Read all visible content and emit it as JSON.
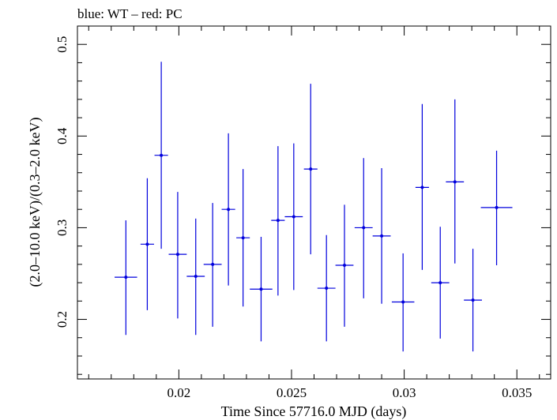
{
  "chart_data": {
    "type": "scatter",
    "title": "blue: WT – red: PC",
    "xlabel": "Time Since 57716.0 MJD (days)",
    "ylabel": "(2.0–10.0 keV)/(0.3–2.0 keV)",
    "xlim": [
      0.0155,
      0.0365
    ],
    "ylim": [
      0.135,
      0.52
    ],
    "x_ticks": [
      0.02,
      0.025,
      0.03,
      0.035
    ],
    "x_tick_labels": [
      "0.02",
      "0.025",
      "0.03",
      "0.035"
    ],
    "y_ticks": [
      0.2,
      0.3,
      0.4,
      0.5
    ],
    "y_tick_labels": [
      "0.2",
      "0.3",
      "0.4",
      "0.5"
    ],
    "grid": false,
    "series": [
      {
        "color": "#0000dd",
        "points": [
          {
            "x": 0.01765,
            "xerr": 0.0005,
            "y": 0.246,
            "ylo": 0.183,
            "yhi": 0.308
          },
          {
            "x": 0.0186,
            "xerr": 0.0003,
            "y": 0.282,
            "ylo": 0.21,
            "yhi": 0.354
          },
          {
            "x": 0.01922,
            "xerr": 0.0003,
            "y": 0.379,
            "ylo": 0.277,
            "yhi": 0.481
          },
          {
            "x": 0.01995,
            "xerr": 0.0004,
            "y": 0.271,
            "ylo": 0.201,
            "yhi": 0.339
          },
          {
            "x": 0.02075,
            "xerr": 0.0004,
            "y": 0.247,
            "ylo": 0.183,
            "yhi": 0.31
          },
          {
            "x": 0.0215,
            "xerr": 0.0004,
            "y": 0.26,
            "ylo": 0.192,
            "yhi": 0.327
          },
          {
            "x": 0.0222,
            "xerr": 0.0003,
            "y": 0.32,
            "ylo": 0.237,
            "yhi": 0.403
          },
          {
            "x": 0.02285,
            "xerr": 0.0003,
            "y": 0.289,
            "ylo": 0.214,
            "yhi": 0.364
          },
          {
            "x": 0.02365,
            "xerr": 0.0005,
            "y": 0.233,
            "ylo": 0.176,
            "yhi": 0.29
          },
          {
            "x": 0.0244,
            "xerr": 0.0003,
            "y": 0.308,
            "ylo": 0.226,
            "yhi": 0.389
          },
          {
            "x": 0.0251,
            "xerr": 0.0004,
            "y": 0.312,
            "ylo": 0.232,
            "yhi": 0.392
          },
          {
            "x": 0.02585,
            "xerr": 0.0003,
            "y": 0.364,
            "ylo": 0.271,
            "yhi": 0.457
          },
          {
            "x": 0.02655,
            "xerr": 0.0004,
            "y": 0.234,
            "ylo": 0.176,
            "yhi": 0.292
          },
          {
            "x": 0.02735,
            "xerr": 0.0004,
            "y": 0.259,
            "ylo": 0.192,
            "yhi": 0.325
          },
          {
            "x": 0.0282,
            "xerr": 0.0004,
            "y": 0.3,
            "ylo": 0.223,
            "yhi": 0.376
          },
          {
            "x": 0.029,
            "xerr": 0.0004,
            "y": 0.291,
            "ylo": 0.217,
            "yhi": 0.365
          },
          {
            "x": 0.02995,
            "xerr": 0.0005,
            "y": 0.219,
            "ylo": 0.165,
            "yhi": 0.272
          },
          {
            "x": 0.0308,
            "xerr": 0.0003,
            "y": 0.344,
            "ylo": 0.254,
            "yhi": 0.435
          },
          {
            "x": 0.0316,
            "xerr": 0.0004,
            "y": 0.24,
            "ylo": 0.179,
            "yhi": 0.301
          },
          {
            "x": 0.03225,
            "xerr": 0.0004,
            "y": 0.35,
            "ylo": 0.261,
            "yhi": 0.44
          },
          {
            "x": 0.03305,
            "xerr": 0.0004,
            "y": 0.221,
            "ylo": 0.165,
            "yhi": 0.277
          },
          {
            "x": 0.0341,
            "xerr": 0.0007,
            "y": 0.322,
            "ylo": 0.259,
            "yhi": 0.384
          }
        ]
      }
    ]
  }
}
